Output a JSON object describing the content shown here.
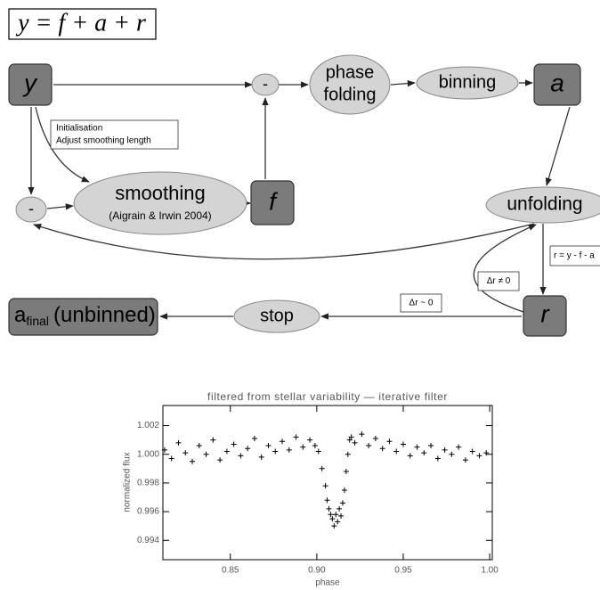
{
  "formula": "y = f + a + r",
  "nodes": {
    "y": {
      "label": "y"
    },
    "minus_top": {
      "label": "-"
    },
    "phase_folding": {
      "lines": [
        "phase",
        "folding"
      ]
    },
    "binning": {
      "label": "binning"
    },
    "a": {
      "label": "a"
    },
    "minus_left": {
      "label": "-"
    },
    "smoothing": {
      "label": "smoothing",
      "sublabel": "(Aigrain & Irwin 2004)"
    },
    "f": {
      "label": "f"
    },
    "unfolding": {
      "label": "unfolding"
    },
    "r": {
      "label": "r"
    },
    "stop": {
      "label": "stop"
    },
    "a_final": {
      "main": "a",
      "sub": "final",
      "rest": "(unbinned)"
    }
  },
  "annotations": {
    "init": [
      "Initialisation",
      "Adjust smoothing length"
    ],
    "residual": "r = y - f - a",
    "not_converged": "Δr ≠ 0",
    "converged": "Δr ~ 0"
  },
  "chart_data": {
    "type": "scatter",
    "title": "filtered from stellar variability — iterative filter",
    "x_label": "phase",
    "y_label": "normalized flux",
    "xlim": [
      0.811,
      1.0015
    ],
    "ylim": [
      0.99265,
      1.0034
    ],
    "xticks": [
      {
        "value": 0.85,
        "label": "0.85"
      },
      {
        "value": 0.9,
        "label": "0.90"
      },
      0.95,
      {
        "value": 1.0,
        "label": "1.00"
      }
    ],
    "yticks": [
      0.994,
      0.996,
      0.998,
      {
        "value": 1.0,
        "label": "1.000"
      },
      1.002
    ],
    "series": [
      {
        "color": "#000000",
        "x": [
          0.812,
          0.816,
          0.82,
          0.824,
          0.828,
          0.832,
          0.836,
          0.84,
          0.844,
          0.848,
          0.852,
          0.856,
          0.86,
          0.864,
          0.868,
          0.872,
          0.876,
          0.88,
          0.884,
          0.888,
          0.892,
          0.896,
          0.899,
          0.901,
          0.903,
          0.905,
          0.906,
          0.907,
          0.908,
          0.909,
          0.91,
          0.911,
          0.912,
          0.913,
          0.914,
          0.915,
          0.916,
          0.917,
          0.918,
          0.919,
          0.92,
          0.922,
          0.926,
          0.93,
          0.934,
          0.938,
          0.942,
          0.946,
          0.95,
          0.954,
          0.958,
          0.962,
          0.966,
          0.97,
          0.974,
          0.978,
          0.982,
          0.986,
          0.99,
          0.994,
          0.998
        ],
        "values": [
          1.0003,
          0.9997,
          1.0008,
          1.0001,
          0.9995,
          1.0006,
          1.0,
          1.001,
          0.9996,
          1.0002,
          1.0007,
          0.9999,
          1.0004,
          1.0011,
          0.9998,
          1.0006,
          1.0002,
          1.0009,
          1.0003,
          1.0012,
          1.0005,
          1.001,
          1.0006,
          1.0002,
          0.999,
          0.9978,
          0.9968,
          0.9962,
          0.9958,
          0.9955,
          0.995,
          0.9958,
          0.9953,
          0.9962,
          0.9957,
          0.9966,
          0.9975,
          0.9988,
          1.0,
          1.001,
          1.0012,
          1.0008,
          1.0014,
          1.0006,
          1.0011,
          1.0004,
          1.0009,
          1.0002,
          1.0007,
          0.9999,
          1.0005,
          1.0001,
          1.0006,
          0.9997,
          1.0003,
          1.0,
          1.0005,
          0.9996,
          1.0002,
          0.9999,
          1.0001
        ]
      }
    ]
  }
}
